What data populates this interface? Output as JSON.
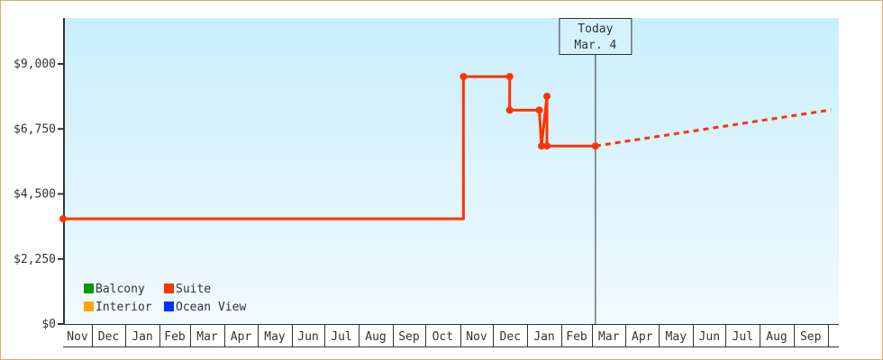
{
  "chart_data": {
    "type": "line",
    "title": "",
    "xlabel": "",
    "ylabel": "",
    "ylim": [
      0,
      10600
    ],
    "y_ticks": [
      "$0",
      "$2,250",
      "$4,500",
      "$6,750",
      "$9,000"
    ],
    "y_tick_values": [
      0,
      2250,
      4500,
      6750,
      9000
    ],
    "x_ticks": [
      "Nov",
      "Dec",
      "Jan",
      "Feb",
      "Mar",
      "Apr",
      "May",
      "Jun",
      "Jul",
      "Aug",
      "Sep",
      "Oct",
      "Nov",
      "Dec",
      "Jan",
      "Feb",
      "Mar",
      "Apr",
      "May",
      "Jun",
      "Jul",
      "Aug",
      "Sep"
    ],
    "grid": false,
    "legend_position": "bottom-left",
    "legend": [
      {
        "name": "Balcony",
        "color": "#009900"
      },
      {
        "name": "Suite",
        "color": "#ff3300"
      },
      {
        "name": "Interior",
        "color": "#ffa500"
      },
      {
        "name": "Ocean View",
        "color": "#0033ff"
      }
    ],
    "series": [
      {
        "name": "Suite",
        "color": "#ff3300",
        "step": true,
        "points": [
          {
            "date": "Nov 5",
            "value": 3640
          },
          {
            "date": "Nov 4 (2nd)",
            "value": 3640
          },
          {
            "date": "Nov 4 (2nd)",
            "value": 8560
          },
          {
            "date": "Dec 16",
            "value": 8560
          },
          {
            "date": "Dec 16",
            "value": 7400
          },
          {
            "date": "Jan 12",
            "value": 7400
          },
          {
            "date": "Jan 14",
            "value": 6160
          },
          {
            "date": "Jan 19",
            "value": 7880
          },
          {
            "date": "Jan 19",
            "value": 6160
          },
          {
            "date": "Mar 4",
            "value": 6160
          }
        ],
        "forecast": [
          {
            "date": "Mar 4",
            "value": 6160
          },
          {
            "date": "Oct 10",
            "value": 7410
          }
        ]
      }
    ],
    "annotation": {
      "line1": "Today",
      "line2": "Mar. 4"
    }
  }
}
